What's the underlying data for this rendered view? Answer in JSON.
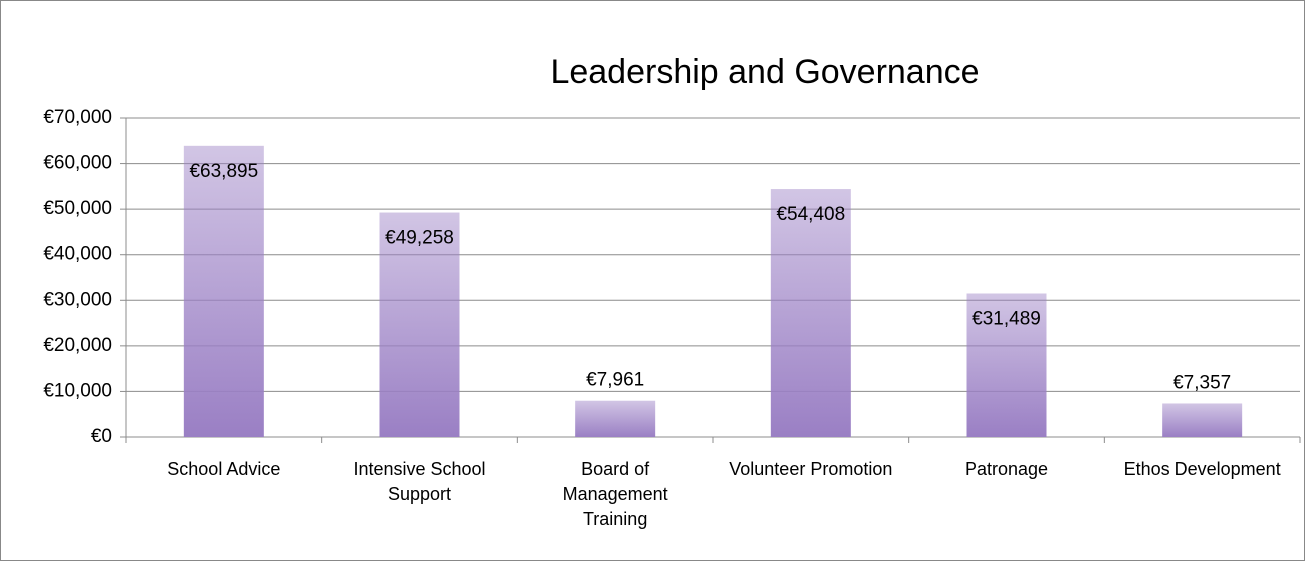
{
  "chart_data": {
    "type": "bar",
    "title": "Leadership and Governance",
    "categories": [
      "School Advice",
      "Intensive School Support",
      "Board of Management Training",
      "Volunteer Promotion",
      "Patronage",
      "Ethos Development"
    ],
    "values": [
      63895,
      49258,
      7961,
      54408,
      31489,
      7357
    ],
    "value_labels": [
      "€63,895",
      "€49,258",
      "€7,961",
      "€54,408",
      "€31,489",
      "€7,357"
    ],
    "color": "#9a7fc4",
    "ylim": [
      0,
      70000
    ],
    "yticks": [
      {
        "value": 0,
        "label": "€0"
      },
      {
        "value": 10000,
        "label": "€10,000"
      },
      {
        "value": 20000,
        "label": "€20,000"
      },
      {
        "value": 30000,
        "label": "€30,000"
      },
      {
        "value": 40000,
        "label": "€40,000"
      },
      {
        "value": 50000,
        "label": "€50,000"
      },
      {
        "value": 60000,
        "label": "€60,000"
      },
      {
        "value": 70000,
        "label": "€70,000"
      }
    ],
    "grid": true
  }
}
